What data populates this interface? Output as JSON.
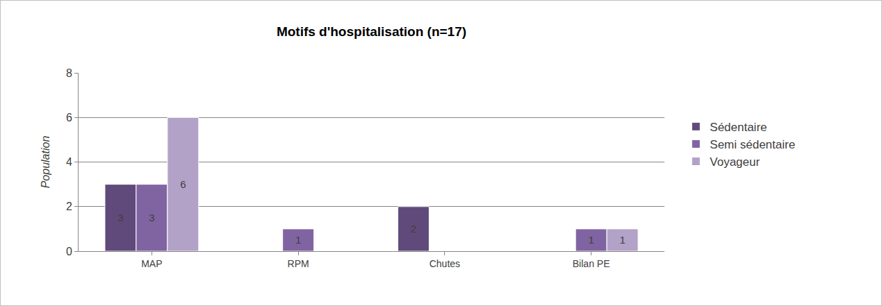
{
  "chart_data": {
    "type": "bar",
    "title": "Motifs d'hospitalisation (n=17)",
    "y_label": "Population",
    "categories": [
      "MAP",
      "RPM",
      "Chutes",
      "Bilan PE"
    ],
    "series": [
      {
        "name": "Sédentaire",
        "color": "#604a7b",
        "values": [
          3,
          null,
          2,
          null
        ]
      },
      {
        "name": "Semi sédentaire",
        "color": "#8064a2",
        "values": [
          3,
          1,
          null,
          1
        ]
      },
      {
        "name": "Voyageur",
        "color": "#b3a2c7",
        "values": [
          6,
          null,
          null,
          1
        ]
      }
    ],
    "ylim": [
      0,
      8
    ],
    "yticks": [
      0,
      2,
      4,
      6,
      8
    ],
    "grid": true,
    "legend": "right",
    "data_labels": true
  }
}
